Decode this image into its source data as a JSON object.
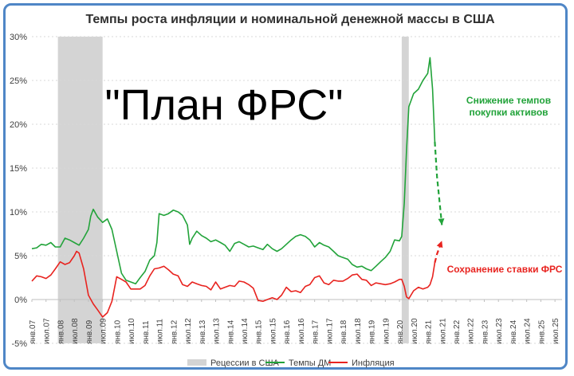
{
  "chart_data": {
    "type": "line",
    "title": "Темпы роста инфляции и номинальной денежной массы в США",
    "annotation_big": "\"План ФРС\"",
    "annotation_green": [
      "Снижение темпов",
      "покупки активов"
    ],
    "annotation_red": "Сохранение ставки ФРС",
    "y_ticks": [
      "30%",
      "25%",
      "20%",
      "15%",
      "10%",
      "5%",
      "0%",
      "-5%"
    ],
    "ylim": [
      -5,
      30
    ],
    "x_ticks": [
      "янв.07",
      "июл.07",
      "янв.08",
      "июл.08",
      "янв.09",
      "июл.09",
      "янв.10",
      "июл.10",
      "янв.11",
      "июл.11",
      "янв.12",
      "июл.12",
      "янв.13",
      "июл.13",
      "янв.14",
      "июл.14",
      "янв.15",
      "июл.15",
      "янв.16",
      "июл.16",
      "янв.17",
      "июл.17",
      "янв.18",
      "июл.18",
      "янв.19",
      "июл.19",
      "янв.20",
      "июл.20",
      "янв.21",
      "июл.21",
      "янв.22",
      "июл.22",
      "янв.23",
      "июл.23",
      "янв.24",
      "июл.24",
      "янв.25",
      "июл.25"
    ],
    "legend": [
      {
        "name": "Рецессии в США",
        "color": "#d4d4d4",
        "kind": "area"
      },
      {
        "name": "Темпы ДМ",
        "color": "#22a33a",
        "kind": "line"
      },
      {
        "name": "Инфляция",
        "color": "#e8231f",
        "kind": "line"
      }
    ],
    "recessions": [
      {
        "start": 2007.92,
        "end": 2009.5
      },
      {
        "start": 2020.08,
        "end": 2020.33
      }
    ],
    "series": [
      {
        "name": "Темпы ДМ",
        "color": "#22a33a",
        "points": [
          [
            2007.0,
            5.8
          ],
          [
            2007.17,
            5.9
          ],
          [
            2007.33,
            6.3
          ],
          [
            2007.5,
            6.2
          ],
          [
            2007.67,
            6.5
          ],
          [
            2007.83,
            6.0
          ],
          [
            2008.0,
            6.0
          ],
          [
            2008.17,
            7.0
          ],
          [
            2008.33,
            6.8
          ],
          [
            2008.5,
            6.5
          ],
          [
            2008.67,
            6.2
          ],
          [
            2008.83,
            7.0
          ],
          [
            2009.0,
            8.0
          ],
          [
            2009.08,
            9.5
          ],
          [
            2009.17,
            10.3
          ],
          [
            2009.33,
            9.4
          ],
          [
            2009.5,
            8.8
          ],
          [
            2009.67,
            9.2
          ],
          [
            2009.83,
            8.0
          ],
          [
            2010.0,
            5.5
          ],
          [
            2010.17,
            3.0
          ],
          [
            2010.33,
            2.2
          ],
          [
            2010.5,
            2.0
          ],
          [
            2010.67,
            1.8
          ],
          [
            2010.83,
            2.5
          ],
          [
            2011.0,
            3.2
          ],
          [
            2011.17,
            4.5
          ],
          [
            2011.33,
            5.0
          ],
          [
            2011.42,
            6.5
          ],
          [
            2011.5,
            9.8
          ],
          [
            2011.67,
            9.6
          ],
          [
            2011.83,
            9.8
          ],
          [
            2012.0,
            10.2
          ],
          [
            2012.17,
            10.0
          ],
          [
            2012.33,
            9.6
          ],
          [
            2012.5,
            8.5
          ],
          [
            2012.58,
            6.3
          ],
          [
            2012.67,
            7.0
          ],
          [
            2012.83,
            7.8
          ],
          [
            2013.0,
            7.3
          ],
          [
            2013.17,
            7.0
          ],
          [
            2013.33,
            6.6
          ],
          [
            2013.5,
            6.8
          ],
          [
            2013.67,
            6.5
          ],
          [
            2013.83,
            6.2
          ],
          [
            2014.0,
            5.5
          ],
          [
            2014.17,
            6.4
          ],
          [
            2014.33,
            6.6
          ],
          [
            2014.5,
            6.3
          ],
          [
            2014.67,
            6.0
          ],
          [
            2014.83,
            6.1
          ],
          [
            2015.0,
            5.9
          ],
          [
            2015.17,
            5.7
          ],
          [
            2015.33,
            6.3
          ],
          [
            2015.5,
            5.8
          ],
          [
            2015.67,
            5.5
          ],
          [
            2015.83,
            5.8
          ],
          [
            2016.0,
            6.3
          ],
          [
            2016.17,
            6.8
          ],
          [
            2016.33,
            7.2
          ],
          [
            2016.5,
            7.4
          ],
          [
            2016.67,
            7.2
          ],
          [
            2016.83,
            6.8
          ],
          [
            2017.0,
            6.0
          ],
          [
            2017.17,
            6.5
          ],
          [
            2017.33,
            6.2
          ],
          [
            2017.5,
            6.0
          ],
          [
            2017.67,
            5.5
          ],
          [
            2017.83,
            5.0
          ],
          [
            2018.0,
            4.8
          ],
          [
            2018.17,
            4.6
          ],
          [
            2018.33,
            4.0
          ],
          [
            2018.5,
            3.7
          ],
          [
            2018.67,
            3.8
          ],
          [
            2018.83,
            3.5
          ],
          [
            2019.0,
            3.3
          ],
          [
            2019.17,
            3.8
          ],
          [
            2019.33,
            4.3
          ],
          [
            2019.5,
            4.8
          ],
          [
            2019.67,
            5.5
          ],
          [
            2019.83,
            6.8
          ],
          [
            2020.0,
            6.7
          ],
          [
            2020.08,
            7.2
          ],
          [
            2020.17,
            11.0
          ],
          [
            2020.25,
            17.0
          ],
          [
            2020.33,
            22.0
          ],
          [
            2020.5,
            23.5
          ],
          [
            2020.67,
            24.0
          ],
          [
            2020.83,
            25.0
          ],
          [
            2021.0,
            25.8
          ],
          [
            2021.08,
            27.6
          ],
          [
            2021.17,
            24.0
          ],
          [
            2021.25,
            18.0
          ]
        ]
      },
      {
        "name": "Инфляция",
        "color": "#e8231f",
        "points": [
          [
            2007.0,
            2.1
          ],
          [
            2007.17,
            2.7
          ],
          [
            2007.33,
            2.6
          ],
          [
            2007.5,
            2.4
          ],
          [
            2007.67,
            2.8
          ],
          [
            2007.83,
            3.5
          ],
          [
            2008.0,
            4.3
          ],
          [
            2008.17,
            4.0
          ],
          [
            2008.33,
            4.2
          ],
          [
            2008.5,
            5.0
          ],
          [
            2008.58,
            5.5
          ],
          [
            2008.67,
            5.3
          ],
          [
            2008.83,
            3.5
          ],
          [
            2009.0,
            0.5
          ],
          [
            2009.17,
            -0.5
          ],
          [
            2009.33,
            -1.2
          ],
          [
            2009.5,
            -2.0
          ],
          [
            2009.67,
            -1.5
          ],
          [
            2009.83,
            -0.2
          ],
          [
            2010.0,
            2.6
          ],
          [
            2010.17,
            2.3
          ],
          [
            2010.33,
            2.0
          ],
          [
            2010.5,
            1.2
          ],
          [
            2010.67,
            1.2
          ],
          [
            2010.83,
            1.2
          ],
          [
            2011.0,
            1.6
          ],
          [
            2011.17,
            2.7
          ],
          [
            2011.33,
            3.5
          ],
          [
            2011.5,
            3.6
          ],
          [
            2011.67,
            3.8
          ],
          [
            2011.83,
            3.4
          ],
          [
            2012.0,
            2.9
          ],
          [
            2012.17,
            2.7
          ],
          [
            2012.33,
            1.7
          ],
          [
            2012.5,
            1.5
          ],
          [
            2012.67,
            2.0
          ],
          [
            2012.83,
            1.8
          ],
          [
            2013.0,
            1.6
          ],
          [
            2013.17,
            1.5
          ],
          [
            2013.33,
            1.1
          ],
          [
            2013.5,
            2.0
          ],
          [
            2013.67,
            1.2
          ],
          [
            2013.83,
            1.4
          ],
          [
            2014.0,
            1.6
          ],
          [
            2014.17,
            1.5
          ],
          [
            2014.33,
            2.1
          ],
          [
            2014.5,
            2.0
          ],
          [
            2014.67,
            1.7
          ],
          [
            2014.83,
            1.3
          ],
          [
            2015.0,
            -0.1
          ],
          [
            2015.17,
            -0.2
          ],
          [
            2015.33,
            0.0
          ],
          [
            2015.5,
            0.2
          ],
          [
            2015.67,
            0.0
          ],
          [
            2015.83,
            0.5
          ],
          [
            2016.0,
            1.4
          ],
          [
            2016.17,
            0.9
          ],
          [
            2016.33,
            1.0
          ],
          [
            2016.5,
            0.8
          ],
          [
            2016.67,
            1.5
          ],
          [
            2016.83,
            1.7
          ],
          [
            2017.0,
            2.5
          ],
          [
            2017.17,
            2.7
          ],
          [
            2017.33,
            1.9
          ],
          [
            2017.5,
            1.7
          ],
          [
            2017.67,
            2.2
          ],
          [
            2017.83,
            2.1
          ],
          [
            2018.0,
            2.1
          ],
          [
            2018.17,
            2.4
          ],
          [
            2018.33,
            2.8
          ],
          [
            2018.5,
            2.9
          ],
          [
            2018.67,
            2.3
          ],
          [
            2018.83,
            2.2
          ],
          [
            2019.0,
            1.6
          ],
          [
            2019.17,
            1.9
          ],
          [
            2019.33,
            1.8
          ],
          [
            2019.5,
            1.7
          ],
          [
            2019.67,
            1.8
          ],
          [
            2019.83,
            2.0
          ],
          [
            2020.0,
            2.3
          ],
          [
            2020.08,
            2.3
          ],
          [
            2020.17,
            1.5
          ],
          [
            2020.25,
            0.3
          ],
          [
            2020.33,
            0.1
          ],
          [
            2020.5,
            1.0
          ],
          [
            2020.67,
            1.4
          ],
          [
            2020.83,
            1.2
          ],
          [
            2021.0,
            1.4
          ],
          [
            2021.08,
            1.7
          ],
          [
            2021.17,
            2.6
          ],
          [
            2021.25,
            4.2
          ]
        ]
      }
    ],
    "forecast_green": [
      [
        2021.25,
        18.0
      ],
      [
        2021.33,
        14.0
      ],
      [
        2021.5,
        8.5
      ]
    ],
    "forecast_red": [
      [
        2021.25,
        4.2
      ],
      [
        2021.33,
        5.2
      ],
      [
        2021.5,
        6.7
      ]
    ]
  }
}
